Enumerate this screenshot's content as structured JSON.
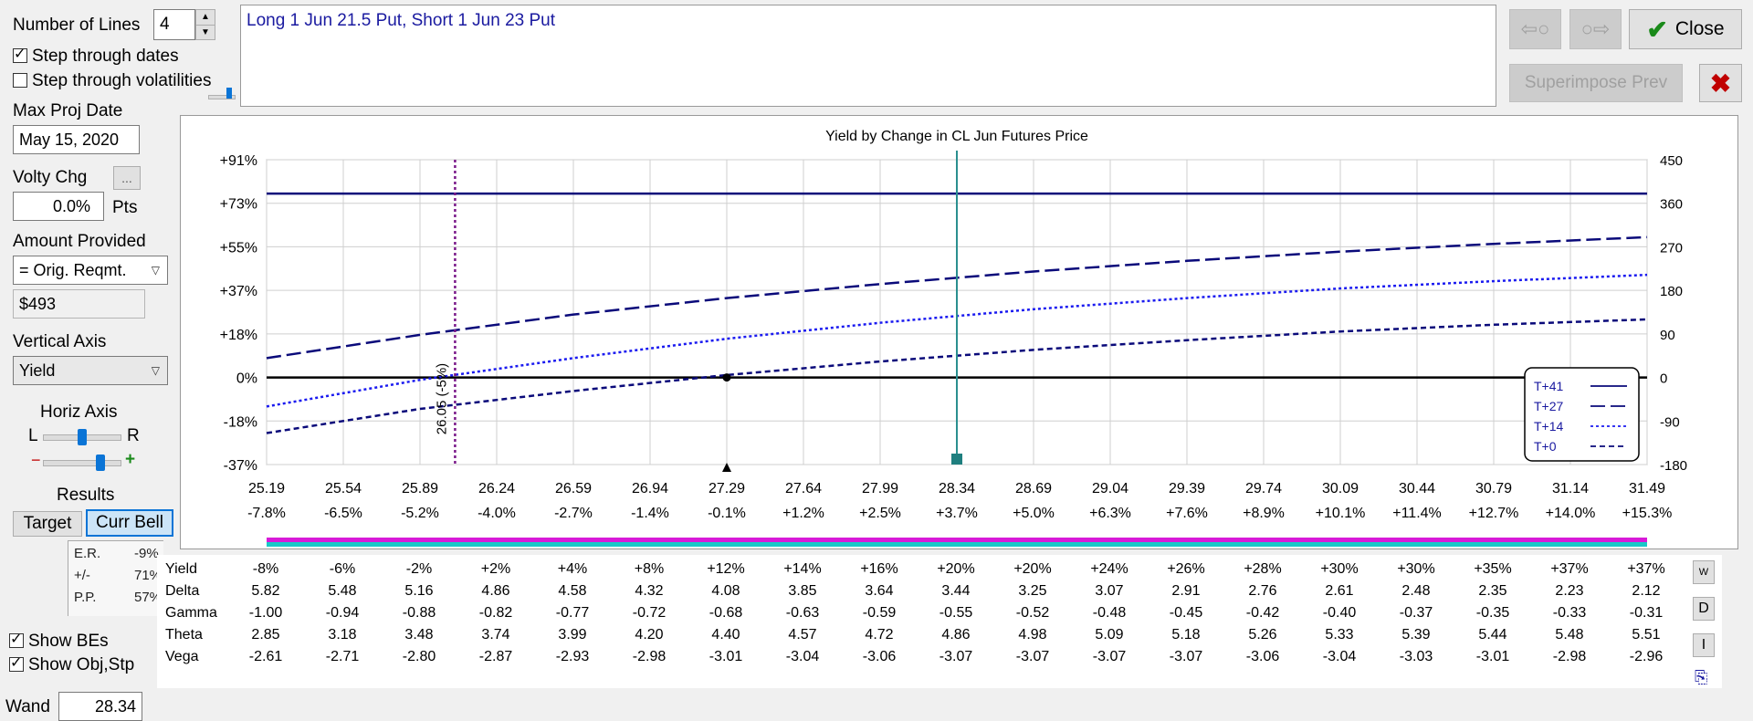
{
  "left_panel": {
    "number_of_lines_label": "Number of Lines",
    "number_of_lines_value": "4",
    "step_dates_label": "Step through dates",
    "step_dates_checked": true,
    "step_vol_label": "Step through volatilities",
    "step_vol_checked": false,
    "max_proj_date_label": "Max Proj Date",
    "max_proj_date_value": "May 15, 2020",
    "volty_chg_label": "Volty Chg",
    "volty_button_label": "...",
    "volty_value": "0.0%",
    "volty_unit": "Pts",
    "amount_provided_label": "Amount Provided",
    "amount_provided_value": "= Orig. Reqmt.",
    "amount_value": "$493",
    "vertical_axis_label": "Vertical Axis",
    "vertical_axis_value": "Yield",
    "horiz_axis_label": "Horiz Axis",
    "horiz_l": "L",
    "horiz_r": "R",
    "zoom_minus": "−",
    "zoom_plus": "+",
    "results_label": "Results",
    "target_tab": "Target",
    "curr_bell_tab": "Curr Bell",
    "er_label": "E.R.",
    "er_value": "-9%",
    "pm_label": "+/-",
    "pm_value": "71%",
    "pp_label": "P.P.",
    "pp_value": "57%",
    "show_bes_label": "Show BEs",
    "show_bes_checked": true,
    "show_obj_label": "Show Obj,Stp",
    "show_obj_checked": true,
    "wand_label": "Wand",
    "wand_value": "28.34"
  },
  "header": {
    "description": "Long 1 Jun 21.5 Put, Short 1 Jun 23 Put",
    "close_label": "Close",
    "superimpose_label": "Superimpose Prev"
  },
  "chart_data": {
    "type": "line",
    "title": "Yield by Change in CL Jun Futures Price",
    "x_ticks": [
      "25.19",
      "25.54",
      "25.89",
      "26.24",
      "26.59",
      "26.94",
      "27.29",
      "27.64",
      "27.99",
      "28.34",
      "28.69",
      "29.04",
      "29.39",
      "29.74",
      "30.09",
      "30.44",
      "30.79",
      "31.14",
      "31.49"
    ],
    "x_pct_ticks": [
      "-7.8%",
      "-6.5%",
      "-5.2%",
      "-4.0%",
      "-2.7%",
      "-1.4%",
      "-0.1%",
      "+1.2%",
      "+2.5%",
      "+3.7%",
      "+5.0%",
      "+6.3%",
      "+7.6%",
      "+8.9%",
      "+10.1%",
      "+11.4%",
      "+12.7%",
      "+14.0%",
      "+15.3%"
    ],
    "y_left_ticks": [
      "+91%",
      "+73%",
      "+55%",
      "+37%",
      "+18%",
      "0%",
      "-18%",
      "-37%"
    ],
    "y_right_ticks": [
      "450",
      "360",
      "270",
      "180",
      "90",
      "0",
      "-90",
      "-180"
    ],
    "xlim": [
      25.19,
      31.49
    ],
    "ylim": [
      -180,
      450
    ],
    "series": [
      {
        "name": "T+41",
        "style": "solid",
        "color": "#0a0a7a",
        "x": [
          25.19,
          31.49
        ],
        "y": [
          380,
          380
        ]
      },
      {
        "name": "T+27",
        "style": "longdash",
        "color": "#0a0a7a",
        "x": [
          25.19,
          25.89,
          26.59,
          27.29,
          27.99,
          28.69,
          29.39,
          30.09,
          30.79,
          31.49
        ],
        "y": [
          40,
          88,
          130,
          164,
          193,
          219,
          241,
          260,
          276,
          290
        ]
      },
      {
        "name": "T+14",
        "style": "dot",
        "color": "#1b1bf0",
        "x": [
          25.19,
          25.89,
          26.59,
          27.29,
          27.99,
          28.69,
          29.39,
          30.09,
          30.79,
          31.49
        ],
        "y": [
          -60,
          -5,
          40,
          80,
          113,
          141,
          164,
          184,
          199,
          212
        ]
      },
      {
        "name": "T+0",
        "style": "dash",
        "color": "#0a0a7a",
        "x": [
          25.19,
          25.89,
          26.59,
          27.29,
          27.99,
          28.69,
          29.39,
          30.09,
          30.79,
          31.49
        ],
        "y": [
          -115,
          -65,
          -28,
          5,
          33,
          57,
          77,
          95,
          109,
          120
        ]
      }
    ],
    "breakeven_label": "26.05 (-5%)",
    "breakeven_x": 26.05,
    "wand_x": 28.34,
    "zero_marker_x": 27.29
  },
  "table": {
    "rows": [
      {
        "label": "Yield",
        "values": [
          "-8%",
          "-6%",
          "-2%",
          "+2%",
          "+4%",
          "+8%",
          "+12%",
          "+14%",
          "+16%",
          "+20%",
          "+20%",
          "+24%",
          "+26%",
          "+28%",
          "+30%",
          "+30%",
          "+35%",
          "+37%",
          "+37%"
        ]
      },
      {
        "label": "Delta",
        "values": [
          "5.82",
          "5.48",
          "5.16",
          "4.86",
          "4.58",
          "4.32",
          "4.08",
          "3.85",
          "3.64",
          "3.44",
          "3.25",
          "3.07",
          "2.91",
          "2.76",
          "2.61",
          "2.48",
          "2.35",
          "2.23",
          "2.12"
        ]
      },
      {
        "label": "Gamma",
        "values": [
          "-1.00",
          "-0.94",
          "-0.88",
          "-0.82",
          "-0.77",
          "-0.72",
          "-0.68",
          "-0.63",
          "-0.59",
          "-0.55",
          "-0.52",
          "-0.48",
          "-0.45",
          "-0.42",
          "-0.40",
          "-0.37",
          "-0.35",
          "-0.33",
          "-0.31"
        ]
      },
      {
        "label": "Theta",
        "values": [
          "2.85",
          "3.18",
          "3.48",
          "3.74",
          "3.99",
          "4.20",
          "4.40",
          "4.57",
          "4.72",
          "4.86",
          "4.98",
          "5.09",
          "5.18",
          "5.26",
          "5.33",
          "5.39",
          "5.44",
          "5.48",
          "5.51"
        ]
      },
      {
        "label": "Vega",
        "values": [
          "-2.61",
          "-2.71",
          "-2.80",
          "-2.87",
          "-2.93",
          "-2.98",
          "-3.01",
          "-3.04",
          "-3.06",
          "-3.07",
          "-3.07",
          "-3.07",
          "-3.07",
          "-3.06",
          "-3.04",
          "-3.03",
          "-3.01",
          "-2.98",
          "-2.96"
        ]
      }
    ],
    "side_buttons": {
      "w": "W",
      "d": "D",
      "i": "I"
    }
  },
  "colors": {
    "accent": "#0a74d6",
    "navy": "#0a0a7a",
    "blue": "#1b1bf0",
    "teal": "#2a8f8f",
    "purple": "#7a1a8a",
    "red_x": "#c00000",
    "green_check": "#1a8a1a"
  }
}
